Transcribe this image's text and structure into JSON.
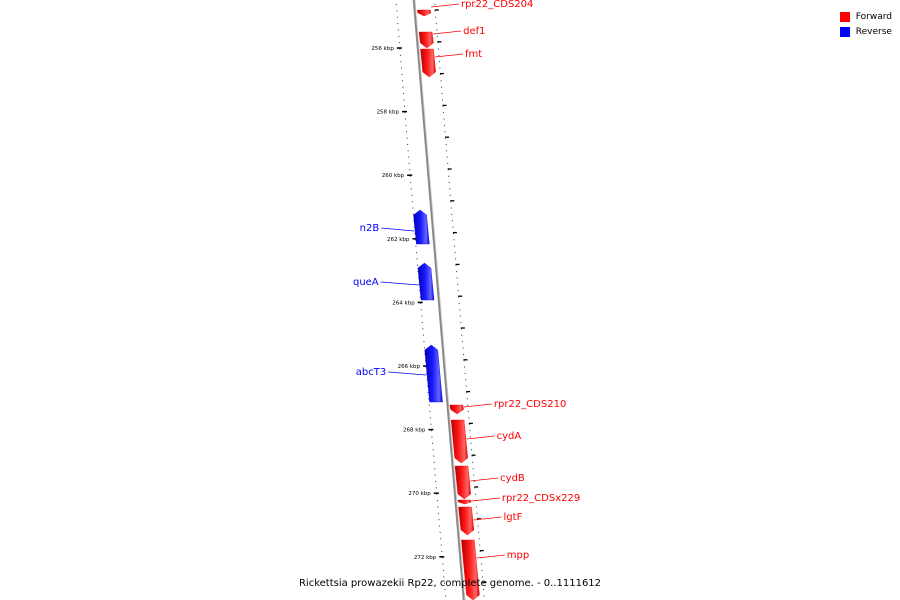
{
  "legend": [
    {
      "label": "Forward",
      "color": "#ff0000"
    },
    {
      "label": "Reverse",
      "color": "#0000ff"
    }
  ],
  "caption": "Rickettsia prowazekii Rp22, complete genome. - 0..1111612",
  "axis_unit": "kbp",
  "tick_labels": [
    "256 kbp",
    "258 kbp",
    "260 kbp",
    "262 kbp",
    "264 kbp",
    "266 kbp",
    "268 kbp",
    "270 kbp",
    "272 kbp"
  ],
  "genes": [
    {
      "name": "rpr22_CDS204",
      "strand": "forward"
    },
    {
      "name": "def1",
      "strand": "forward"
    },
    {
      "name": "fmt",
      "strand": "forward"
    },
    {
      "name": "n2B",
      "strand": "reverse"
    },
    {
      "name": "queA",
      "strand": "reverse"
    },
    {
      "name": "abcT3",
      "strand": "reverse"
    },
    {
      "name": "rpr22_CDS210",
      "strand": "forward"
    },
    {
      "name": "cydA",
      "strand": "forward"
    },
    {
      "name": "cydB",
      "strand": "forward"
    },
    {
      "name": "rpr22_CDSx229",
      "strand": "forward"
    },
    {
      "name": "lgtF",
      "strand": "forward"
    },
    {
      "name": "mpp",
      "strand": "forward"
    }
  ],
  "colors": {
    "forward": "#ff0000",
    "reverse": "#0000ff",
    "backbone": "#888888"
  }
}
